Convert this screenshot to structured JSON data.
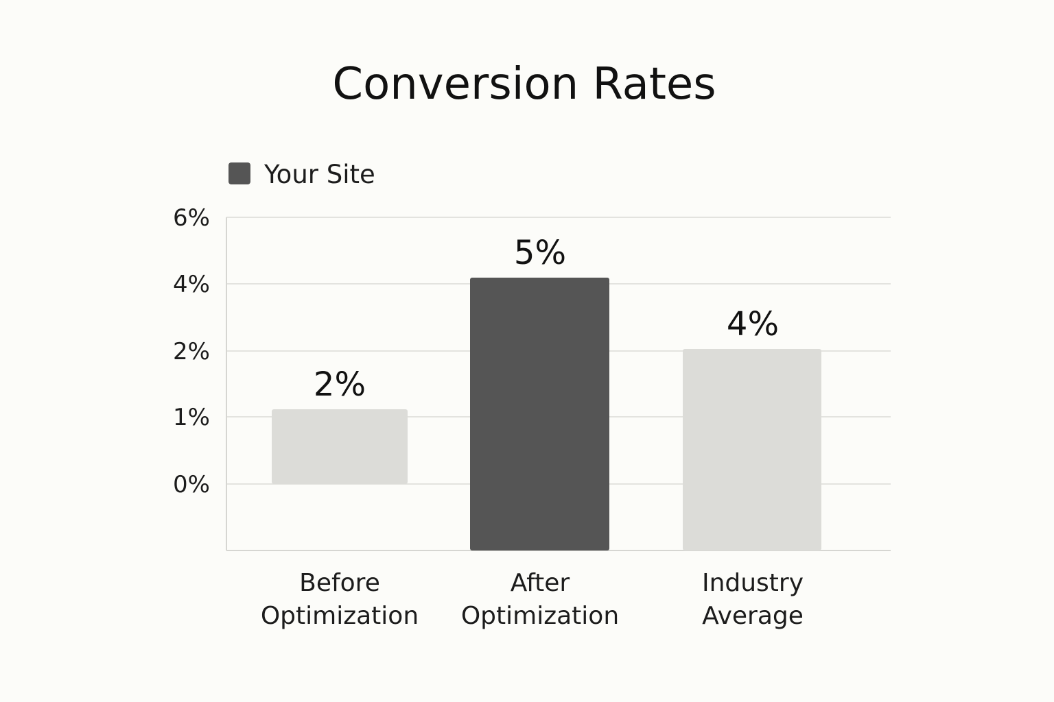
{
  "chart_data": {
    "type": "bar",
    "title": "Conversion Rates",
    "legend": {
      "position": "top-left",
      "entries": [
        {
          "label": "Your Site",
          "color": "#555555"
        }
      ]
    },
    "y_tick_labels": [
      "6%",
      "4%",
      "2%",
      "1%",
      "0%"
    ],
    "categories": [
      {
        "lines": [
          "Before",
          "Optimization"
        ],
        "value_label": "2%",
        "color": "#dcdcd8"
      },
      {
        "lines": [
          "After",
          "Optimization"
        ],
        "value_label": "5%",
        "color": "#555555"
      },
      {
        "lines": [
          "Industry",
          "Average"
        ],
        "value_label": "4%",
        "color": "#dcdcd8"
      }
    ],
    "grid": true,
    "colors": {
      "background": "#fcfcf9",
      "gridline": "#e3e3df",
      "axis": "#d6d6d2"
    }
  }
}
